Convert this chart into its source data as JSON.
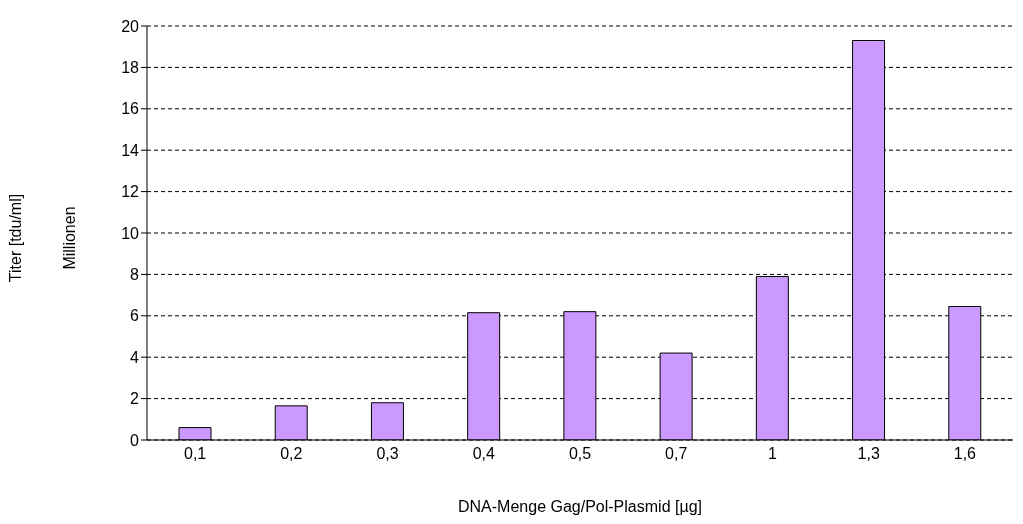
{
  "chart_data": {
    "type": "bar",
    "xlabel": "DNA-Menge Gag/Pol-Plasmid [µg]",
    "annotations": [
      "Titer [tdu/ml]",
      "Millionen"
    ],
    "categories": [
      "0,1",
      "0,2",
      "0,3",
      "0,4",
      "0,5",
      "0,7",
      "1",
      "1,3",
      "1,6"
    ],
    "values": [
      0.6,
      1.65,
      1.8,
      6.15,
      6.2,
      4.2,
      7.9,
      19.3,
      6.45
    ],
    "color": "#cc99ff",
    "ylim": [
      0,
      20
    ],
    "yticks": [
      0,
      2,
      4,
      6,
      8,
      10,
      12,
      14,
      16,
      18,
      20
    ],
    "grid": "y"
  }
}
